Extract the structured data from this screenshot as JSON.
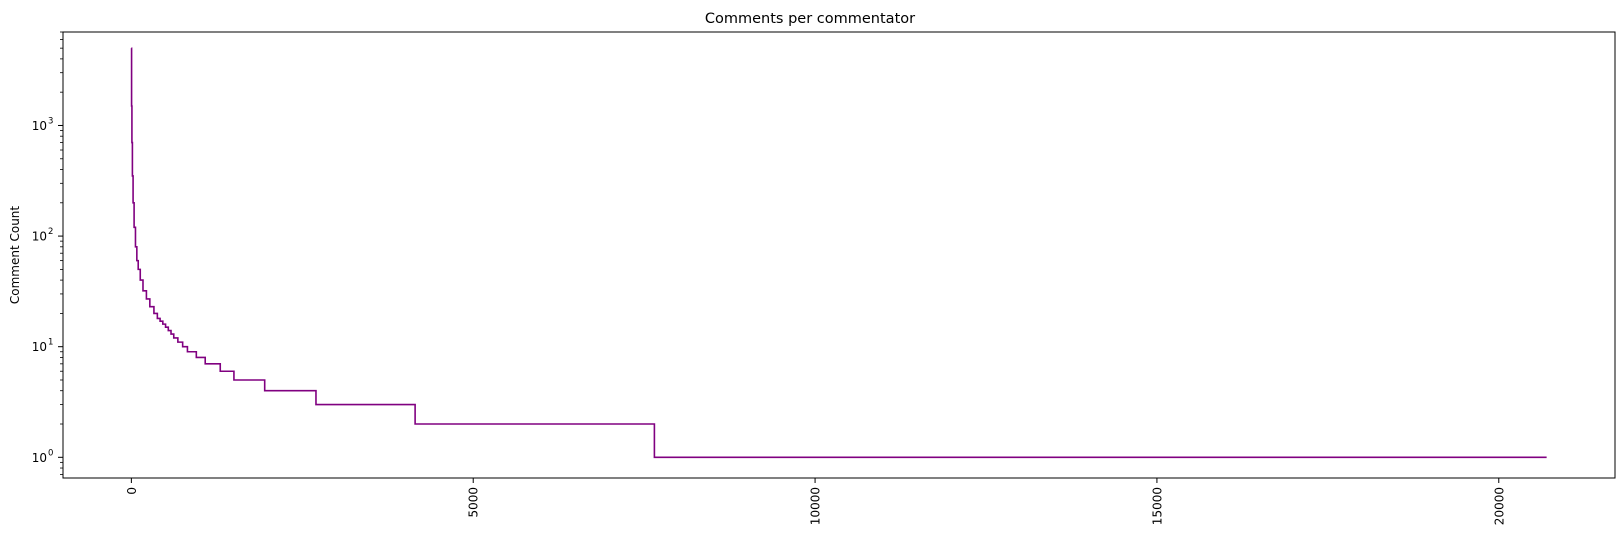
{
  "chart_data": {
    "type": "line",
    "title": "Comments per commentator",
    "xlabel": "",
    "ylabel": "Comment Count",
    "yscale": "log",
    "xlim": [
      -1000,
      21700
    ],
    "ylim": [
      0.65,
      7000
    ],
    "x_ticks": [
      0,
      5000,
      10000,
      15000,
      20000
    ],
    "x_tick_labels": [
      "0",
      "5000",
      "10000",
      "15000",
      "20000"
    ],
    "x_tick_rotation": 90,
    "y_ticks": [
      1,
      10,
      100,
      1000
    ],
    "y_tick_labels": [
      "10",
      "10",
      "10",
      "10"
    ],
    "y_tick_exponents": [
      "0",
      "1",
      "2",
      "3"
    ],
    "grid": false,
    "legend": "none",
    "line_color": "#800080",
    "series": [
      {
        "points": [
          [
            0,
            5000
          ],
          [
            3,
            1500
          ],
          [
            8,
            700
          ],
          [
            15,
            350
          ],
          [
            25,
            200
          ],
          [
            40,
            120
          ],
          [
            60,
            80
          ],
          [
            80,
            60
          ],
          [
            100,
            50
          ],
          [
            130,
            40
          ],
          [
            170,
            32
          ],
          [
            220,
            27
          ],
          [
            270,
            23
          ],
          [
            330,
            20
          ],
          [
            380,
            18
          ],
          [
            420,
            17
          ],
          [
            460,
            16
          ],
          [
            500,
            15
          ],
          [
            540,
            14
          ],
          [
            580,
            13
          ],
          [
            620,
            12
          ],
          [
            680,
            11
          ],
          [
            750,
            10
          ],
          [
            820,
            9
          ],
          [
            950,
            8
          ],
          [
            1080,
            7
          ],
          [
            1300,
            6
          ],
          [
            1500,
            5
          ],
          [
            1950,
            4
          ],
          [
            2700,
            3
          ],
          [
            4150,
            2
          ],
          [
            7650,
            1
          ],
          [
            20700,
            1
          ]
        ]
      }
    ]
  }
}
